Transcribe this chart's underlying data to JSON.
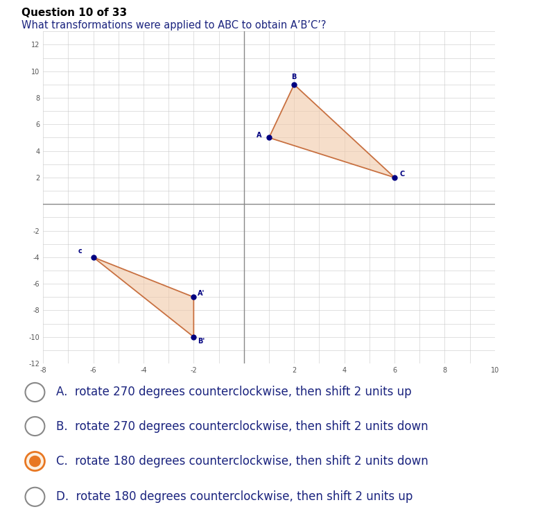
{
  "title_question": "Question 10 of 33",
  "subtitle": "What transformations were applied to ABC to obtain A’B’C’?",
  "background_color": "#ffffff",
  "grid_color": "#c8c8c8",
  "axis_color": "#555555",
  "xlim": [
    -8,
    10
  ],
  "ylim": [
    -12,
    13
  ],
  "xticks": [
    -8,
    -6,
    -4,
    -2,
    0,
    2,
    4,
    6,
    8,
    10
  ],
  "yticks": [
    -12,
    -10,
    -8,
    -6,
    -4,
    -2,
    0,
    2,
    4,
    6,
    8,
    10,
    12
  ],
  "triangle_ABC": {
    "A": [
      1,
      5
    ],
    "B": [
      2,
      9
    ],
    "C": [
      6,
      2
    ],
    "color": "#c87040",
    "fill_color": "#f0c8a8",
    "fill_alpha": 0.6,
    "point_color": "#000080",
    "point_size": 5
  },
  "triangle_prime": {
    "C_prime": [
      -6,
      -4
    ],
    "A_prime": [
      -2,
      -7
    ],
    "B_prime": [
      -2,
      -10
    ],
    "color": "#c87040",
    "fill_color": "#f0c8a8",
    "fill_alpha": 0.6,
    "point_color": "#000080",
    "point_size": 5
  },
  "label_color": "#000080",
  "label_fontsize": 7,
  "tick_fontsize": 7,
  "options": [
    {
      "letter": "A",
      "text": "rotate 270 degrees counterclockwise, then shift 2 units up",
      "selected": false
    },
    {
      "letter": "B",
      "text": "rotate 270 degrees counterclockwise, then shift 2 units down",
      "selected": false
    },
    {
      "letter": "C",
      "text": "rotate 180 degrees counterclockwise, then shift 2 units down",
      "selected": true
    },
    {
      "letter": "D",
      "text": "rotate 180 degrees counterclockwise, then shift 2 units up",
      "selected": false
    }
  ],
  "option_text_color": "#1a237e",
  "option_fontsize": 12,
  "radio_unselected_edge": "#888888",
  "radio_selected_color": "#e87722",
  "radio_selected_fill": "#fdf0e0",
  "separator_color": "#cccccc"
}
